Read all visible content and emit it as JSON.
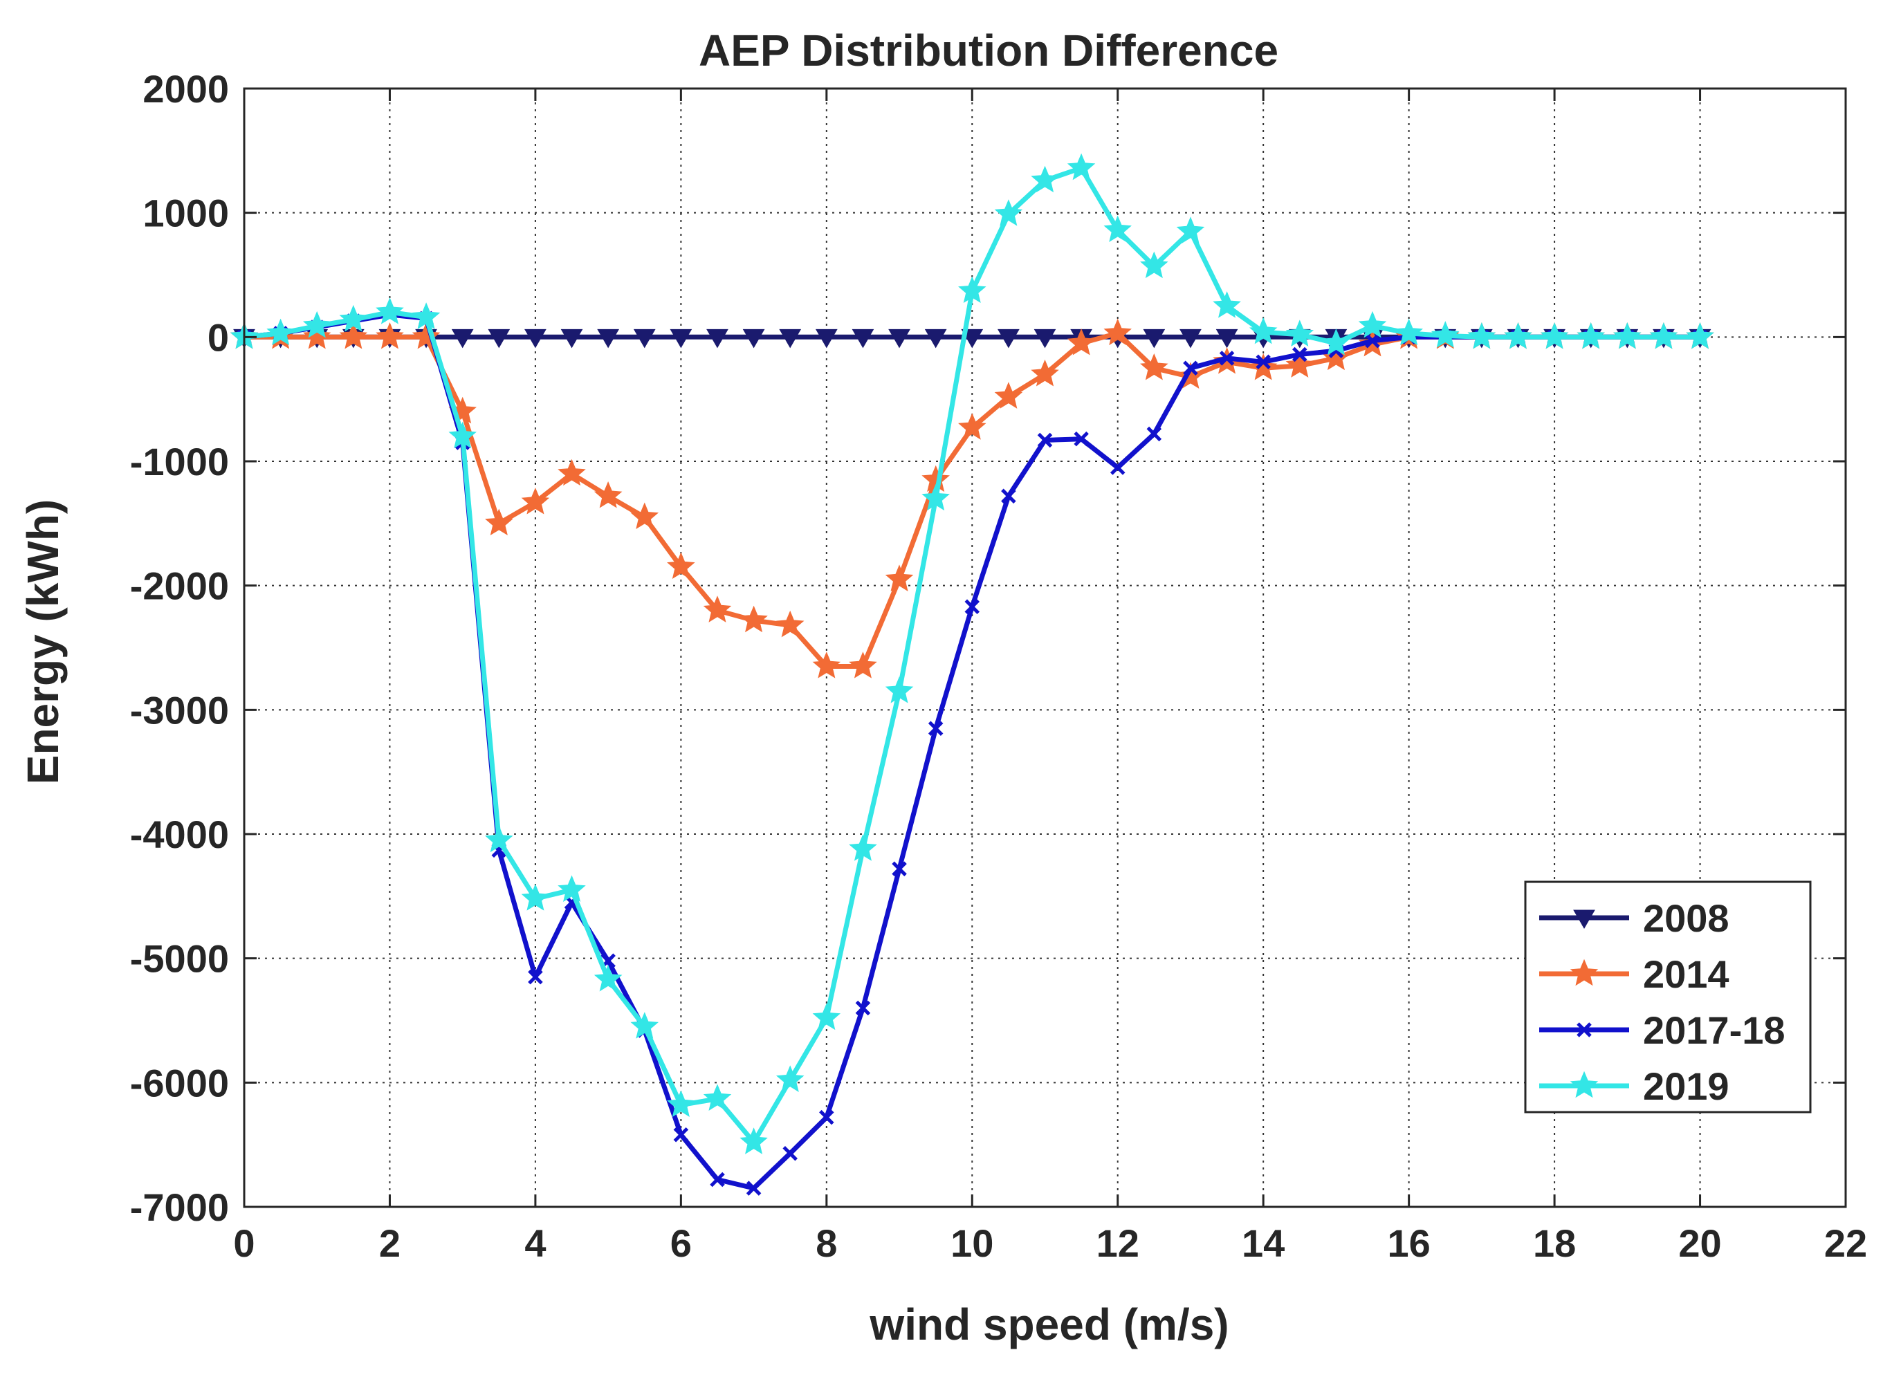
{
  "chart_data": {
    "type": "line",
    "title": "AEP Distribution Difference",
    "xlabel": "wind speed (m/s)",
    "ylabel": "Energy (kWh)",
    "xlim": [
      0,
      22
    ],
    "ylim": [
      -7000,
      2000
    ],
    "xticks": [
      0,
      2,
      4,
      6,
      8,
      10,
      12,
      14,
      16,
      18,
      20,
      22
    ],
    "yticks": [
      2000,
      1000,
      0,
      -1000,
      -2000,
      -3000,
      -4000,
      -5000,
      -6000,
      -7000
    ],
    "grid": true,
    "legend_position": "lower-right",
    "x": [
      0,
      0.5,
      1,
      1.5,
      2,
      2.5,
      3,
      3.5,
      4,
      4.5,
      5,
      5.5,
      6,
      6.5,
      7,
      7.5,
      8,
      8.5,
      9,
      9.5,
      10,
      10.5,
      11,
      11.5,
      12,
      12.5,
      13,
      13.5,
      14,
      14.5,
      15,
      15.5,
      16,
      16.5,
      17,
      17.5,
      18,
      18.5,
      19,
      19.5,
      20
    ],
    "series": [
      {
        "name": "2008",
        "color": "#1a1a6e",
        "marker": "triangle-down",
        "values": [
          0,
          0,
          0,
          0,
          0,
          0,
          0,
          0,
          0,
          0,
          0,
          0,
          0,
          0,
          0,
          0,
          0,
          0,
          0,
          0,
          0,
          0,
          0,
          0,
          0,
          0,
          0,
          0,
          0,
          0,
          0,
          0,
          0,
          0,
          0,
          0,
          0,
          0,
          0,
          0,
          0
        ]
      },
      {
        "name": "2014",
        "color": "#f26b35",
        "marker": "star",
        "values": [
          0,
          0,
          0,
          0,
          0,
          0,
          -600,
          -1500,
          -1330,
          -1100,
          -1280,
          -1450,
          -1850,
          -2200,
          -2280,
          -2320,
          -2650,
          -2650,
          -1950,
          -1150,
          -730,
          -480,
          -300,
          -50,
          30,
          -250,
          -320,
          -200,
          -250,
          -230,
          -170,
          -60,
          0,
          0,
          0,
          0,
          0,
          0,
          0,
          0,
          0
        ]
      },
      {
        "name": "2017-18",
        "color": "#1111cc",
        "marker": "x",
        "values": [
          0,
          30,
          80,
          130,
          180,
          150,
          -850,
          -4130,
          -5150,
          -4550,
          -5020,
          -5580,
          -6420,
          -6780,
          -6850,
          -6570,
          -6280,
          -5400,
          -4280,
          -3150,
          -2170,
          -1280,
          -830,
          -820,
          -1050,
          -780,
          -250,
          -170,
          -200,
          -140,
          -110,
          -30,
          0,
          0,
          0,
          0,
          0,
          0,
          0,
          0,
          0
        ]
      },
      {
        "name": "2019",
        "color": "#33e6e6",
        "marker": "star",
        "values": [
          0,
          30,
          90,
          140,
          200,
          160,
          -800,
          -4050,
          -4520,
          -4450,
          -5170,
          -5550,
          -6180,
          -6130,
          -6480,
          -5980,
          -5480,
          -4120,
          -2850,
          -1300,
          370,
          990,
          1260,
          1360,
          860,
          570,
          850,
          250,
          40,
          20,
          -50,
          90,
          30,
          10,
          0,
          0,
          0,
          0,
          0,
          0,
          0
        ]
      }
    ]
  }
}
